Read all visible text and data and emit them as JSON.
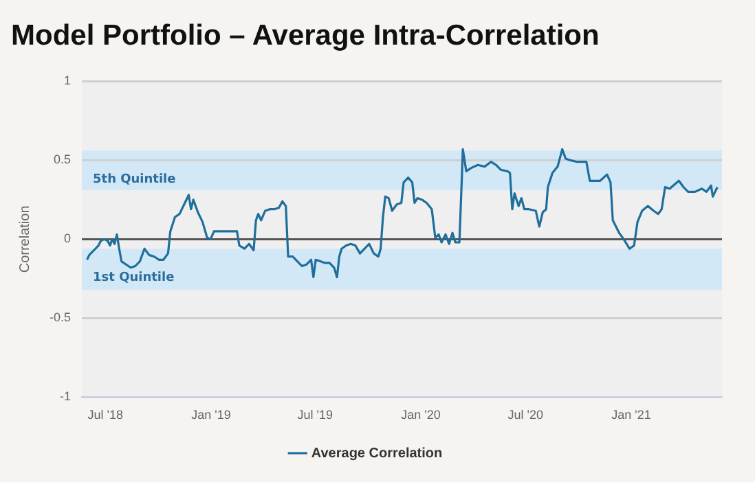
{
  "chart_data": {
    "type": "line",
    "title": "Model Portfolio – Average Intra-Correlation",
    "ylabel": "Correlation",
    "xlim": [
      "2018-05-21",
      "2021-06-08"
    ],
    "xticks": [
      {
        "value": "2018-07-01",
        "label": "Jul '18"
      },
      {
        "value": "2019-01-01",
        "label": "Jan '19"
      },
      {
        "value": "2019-07-01",
        "label": "Jul '19"
      },
      {
        "value": "2020-01-01",
        "label": "Jan '20"
      },
      {
        "value": "2020-07-01",
        "label": "Jul '20"
      },
      {
        "value": "2021-01-01",
        "label": "Jan '21"
      }
    ],
    "ylim": [
      -1,
      1
    ],
    "yticks": [
      -1,
      -0.5,
      0,
      0.5,
      1
    ],
    "grid": "y",
    "legend": "bottom",
    "marker": "none",
    "line_style": "solid",
    "ref_lines": [
      {
        "axis": "y",
        "value": 0,
        "color": "#555555"
      }
    ],
    "bands": [
      {
        "axis": "y",
        "from": 0.31,
        "to": 0.56,
        "label": "5th Quintile",
        "color": "#d3e8f6"
      },
      {
        "axis": "y",
        "from": -0.32,
        "to": -0.06,
        "label": "1st Quintile",
        "color": "#d3e8f6"
      }
    ],
    "x": [
      "2018-05-30",
      "2018-06-03",
      "2018-06-11",
      "2018-06-19",
      "2018-06-23",
      "2018-06-29",
      "2018-07-05",
      "2018-07-09",
      "2018-07-13",
      "2018-07-17",
      "2018-07-21",
      "2018-07-25",
      "2018-07-29",
      "2018-08-06",
      "2018-08-14",
      "2018-08-22",
      "2018-08-30",
      "2018-09-07",
      "2018-09-15",
      "2018-09-24",
      "2018-10-02",
      "2018-10-10",
      "2018-10-18",
      "2018-10-22",
      "2018-10-30",
      "2018-11-07",
      "2018-11-15",
      "2018-11-23",
      "2018-11-27",
      "2018-12-01",
      "2018-12-09",
      "2018-12-17",
      "2018-12-25",
      "2018-12-31",
      "2019-01-06",
      "2019-01-14",
      "2019-01-22",
      "2019-01-30",
      "2019-02-07",
      "2019-02-15",
      "2019-02-19",
      "2019-02-28",
      "2019-03-08",
      "2019-03-16",
      "2019-03-20",
      "2019-03-24",
      "2019-03-29",
      "2019-04-05",
      "2019-04-13",
      "2019-04-21",
      "2019-04-29",
      "2019-05-05",
      "2019-05-11",
      "2019-05-15",
      "2019-05-23",
      "2019-05-31",
      "2019-06-08",
      "2019-06-16",
      "2019-06-24",
      "2019-06-28",
      "2019-07-02",
      "2019-07-10",
      "2019-07-18",
      "2019-07-26",
      "2019-08-03",
      "2019-08-08",
      "2019-08-12",
      "2019-08-16",
      "2019-08-24",
      "2019-09-01",
      "2019-09-09",
      "2019-09-17",
      "2019-09-25",
      "2019-10-03",
      "2019-10-11",
      "2019-10-19",
      "2019-10-23",
      "2019-10-27",
      "2019-10-31",
      "2019-11-06",
      "2019-11-12",
      "2019-11-20",
      "2019-11-28",
      "2019-12-02",
      "2019-12-10",
      "2019-12-17",
      "2019-12-21",
      "2019-12-26",
      "2020-01-03",
      "2020-01-11",
      "2020-01-20",
      "2020-01-26",
      "2020-02-01",
      "2020-02-06",
      "2020-02-13",
      "2020-02-19",
      "2020-02-25",
      "2020-03-01",
      "2020-03-08",
      "2020-03-12",
      "2020-03-14",
      "2020-03-20",
      "2020-03-28",
      "2020-04-09",
      "2020-04-21",
      "2020-05-02",
      "2020-05-11",
      "2020-05-19",
      "2020-05-31",
      "2020-06-04",
      "2020-06-08",
      "2020-06-12",
      "2020-06-19",
      "2020-06-24",
      "2020-06-29",
      "2020-07-07",
      "2020-07-19",
      "2020-07-25",
      "2020-07-31",
      "2020-08-06",
      "2020-08-09",
      "2020-08-17",
      "2020-08-26",
      "2020-09-03",
      "2020-09-09",
      "2020-09-17",
      "2020-09-29",
      "2020-10-15",
      "2020-10-21",
      "2020-10-27",
      "2020-11-08",
      "2020-11-20",
      "2020-11-26",
      "2020-11-30",
      "2020-12-11",
      "2020-12-19",
      "2020-12-29",
      "2021-01-06",
      "2021-01-12",
      "2021-01-20",
      "2021-01-30",
      "2021-02-09",
      "2021-02-17",
      "2021-02-23",
      "2021-03-01",
      "2021-03-09",
      "2021-03-25",
      "2021-04-02",
      "2021-04-10",
      "2021-04-22",
      "2021-05-04",
      "2021-05-12",
      "2021-05-20",
      "2021-05-23",
      "2021-05-31"
    ],
    "series": [
      {
        "name": "Average Correlation",
        "color": "#1f6e9c",
        "values": [
          -0.13,
          -0.1,
          -0.07,
          -0.04,
          -0.01,
          0.0,
          -0.01,
          -0.04,
          0.0,
          -0.03,
          0.03,
          -0.06,
          -0.14,
          -0.16,
          -0.18,
          -0.17,
          -0.14,
          -0.06,
          -0.1,
          -0.11,
          -0.13,
          -0.13,
          -0.09,
          0.05,
          0.14,
          0.16,
          0.22,
          0.28,
          0.19,
          0.25,
          0.17,
          0.11,
          0.01,
          0.0,
          0.05,
          0.05,
          0.05,
          0.05,
          0.05,
          0.05,
          -0.04,
          -0.06,
          -0.03,
          -0.07,
          0.12,
          0.16,
          0.12,
          0.18,
          0.19,
          0.19,
          0.2,
          0.24,
          0.21,
          -0.11,
          -0.11,
          -0.14,
          -0.17,
          -0.16,
          -0.13,
          -0.24,
          -0.13,
          -0.14,
          -0.15,
          -0.15,
          -0.18,
          -0.24,
          -0.11,
          -0.06,
          -0.04,
          -0.03,
          -0.04,
          -0.09,
          -0.06,
          -0.03,
          -0.09,
          -0.11,
          -0.06,
          0.14,
          0.27,
          0.26,
          0.18,
          0.22,
          0.23,
          0.36,
          0.39,
          0.36,
          0.23,
          0.26,
          0.25,
          0.23,
          0.19,
          0.01,
          0.03,
          -0.02,
          0.03,
          -0.03,
          0.04,
          -0.02,
          -0.02,
          0.36,
          0.57,
          0.43,
          0.45,
          0.47,
          0.46,
          0.49,
          0.47,
          0.44,
          0.43,
          0.42,
          0.19,
          0.29,
          0.21,
          0.26,
          0.19,
          0.19,
          0.18,
          0.08,
          0.17,
          0.19,
          0.33,
          0.42,
          0.46,
          0.57,
          0.51,
          0.5,
          0.49,
          0.49,
          0.37,
          0.37,
          0.37,
          0.41,
          0.36,
          0.12,
          0.04,
          0.0,
          -0.06,
          -0.04,
          0.11,
          0.18,
          0.21,
          0.18,
          0.16,
          0.19,
          0.33,
          0.32,
          0.37,
          0.33,
          0.3,
          0.3,
          0.32,
          0.3,
          0.34,
          0.27,
          0.33
        ]
      }
    ]
  }
}
